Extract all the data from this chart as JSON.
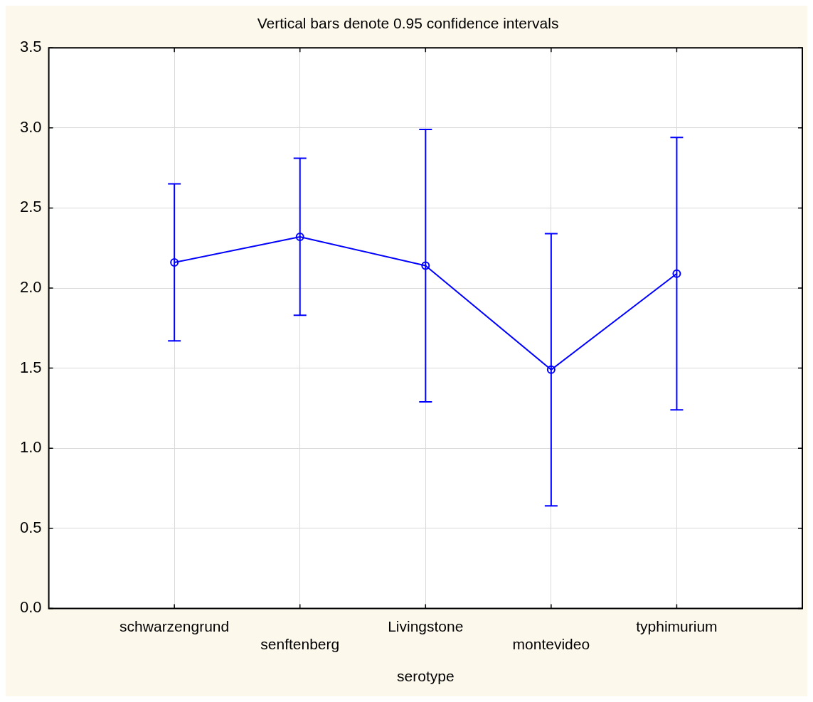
{
  "chart_data": {
    "type": "line",
    "title": "Vertical bars denote 0.95 confidence intervals",
    "xlabel": "serotype",
    "categories": [
      "schwarzengrund",
      "senftenberg",
      "Livingstone",
      "montevideo",
      "typhimurium"
    ],
    "series": [
      {
        "color": "#0000ff",
        "values": [
          2.16,
          2.32,
          2.14,
          1.49,
          2.09
        ],
        "errors": [
          0.49,
          0.49,
          0.85,
          0.85,
          0.85
        ]
      }
    ],
    "ylim": [
      0,
      3.5
    ],
    "yticks": [
      {
        "value": 0,
        "label": "0.0"
      },
      {
        "value": 0.5,
        "label": "0.5"
      },
      {
        "value": 1,
        "label": "1.0"
      },
      {
        "value": 1.5,
        "label": "1.5"
      },
      {
        "value": 2,
        "label": "2.0"
      },
      {
        "value": 2.5,
        "label": "2.5"
      },
      {
        "value": 3,
        "label": "3.0"
      },
      {
        "value": 3.5,
        "label": "3.5"
      }
    ],
    "grid": true,
    "marker": "circle",
    "line_style": "solid",
    "legend": false
  }
}
